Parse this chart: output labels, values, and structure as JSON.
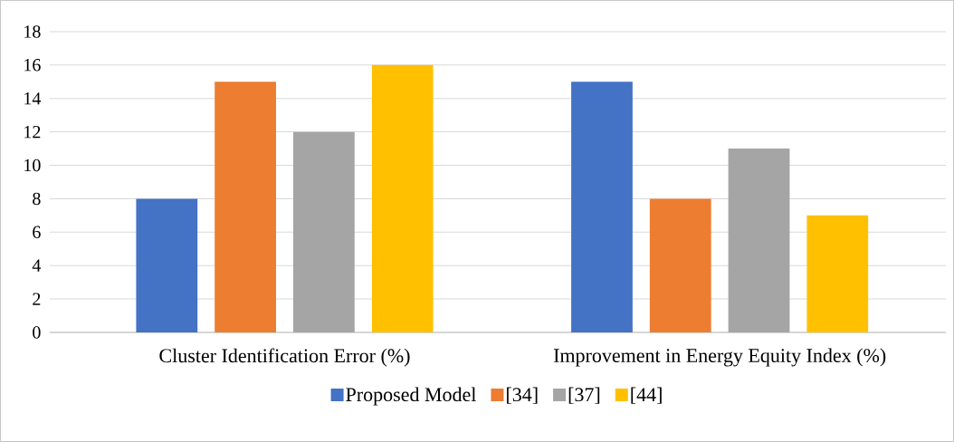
{
  "chart_data": {
    "type": "bar",
    "categories": [
      "Cluster Identification Error (%)",
      "Improvement in Energy Equity Index (%)"
    ],
    "series": [
      {
        "name": "Proposed Model",
        "color": "#4472c4",
        "values": [
          8,
          15
        ]
      },
      {
        "name": "[34]",
        "color": "#ed7d31",
        "values": [
          15,
          8
        ]
      },
      {
        "name": "[37]",
        "color": "#a5a5a5",
        "values": [
          12,
          11
        ]
      },
      {
        "name": "[44]",
        "color": "#ffc000",
        "values": [
          16,
          7
        ]
      }
    ],
    "ylim": [
      0,
      18
    ],
    "yticks": [
      0,
      2,
      4,
      6,
      8,
      10,
      12,
      14,
      16,
      18
    ],
    "grid": "y",
    "legend": "bottom"
  }
}
